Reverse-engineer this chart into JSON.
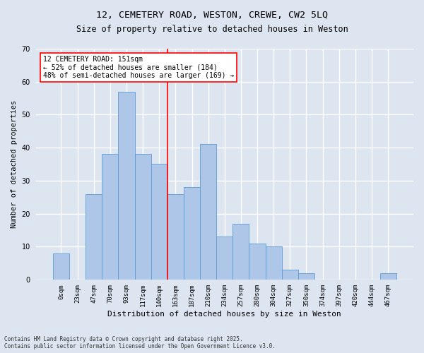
{
  "title1": "12, CEMETERY ROAD, WESTON, CREWE, CW2 5LQ",
  "title2": "Size of property relative to detached houses in Weston",
  "xlabel": "Distribution of detached houses by size in Weston",
  "ylabel": "Number of detached properties",
  "footer": "Contains HM Land Registry data © Crown copyright and database right 2025.\nContains public sector information licensed under the Open Government Licence v3.0.",
  "bar_labels": [
    "0sqm",
    "23sqm",
    "47sqm",
    "70sqm",
    "93sqm",
    "117sqm",
    "140sqm",
    "163sqm",
    "187sqm",
    "210sqm",
    "234sqm",
    "257sqm",
    "280sqm",
    "304sqm",
    "327sqm",
    "350sqm",
    "374sqm",
    "397sqm",
    "420sqm",
    "444sqm",
    "467sqm"
  ],
  "bar_heights": [
    8,
    0,
    26,
    38,
    57,
    38,
    35,
    26,
    28,
    41,
    13,
    17,
    11,
    10,
    3,
    2,
    0,
    0,
    0,
    0,
    2
  ],
  "bar_color": "#aec6e8",
  "bar_edgecolor": "#5b9bd5",
  "reference_line_x": 6.5,
  "reference_line_label": "12 CEMETERY ROAD: 151sqm",
  "annotation_line1": "← 52% of detached houses are smaller (184)",
  "annotation_line2": "48% of semi-detached houses are larger (169) →",
  "ylim": [
    0,
    70
  ],
  "yticks": [
    0,
    10,
    20,
    30,
    40,
    50,
    60,
    70
  ],
  "background_color": "#dde5f0",
  "plot_background": "#dde5f0",
  "grid_color": "#ffffff",
  "title1_fontsize": 9.5,
  "title2_fontsize": 8.5,
  "xlabel_fontsize": 8,
  "ylabel_fontsize": 7.5,
  "tick_fontsize": 6.5,
  "annotation_fontsize": 7,
  "footer_fontsize": 5.5
}
